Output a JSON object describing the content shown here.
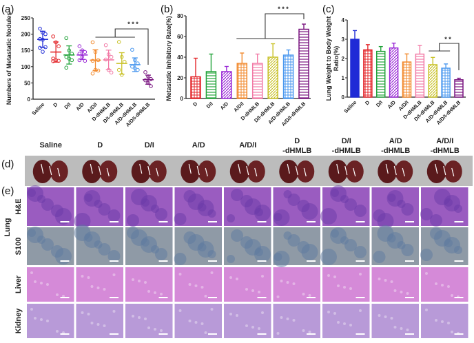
{
  "panel_labels": [
    "(a)",
    "(b)",
    "(c)",
    "(d)",
    "(e)"
  ],
  "colors": [
    "#1f2bd6",
    "#e3262a",
    "#22a33a",
    "#9a2ad6",
    "#f28a2e",
    "#f27aa6",
    "#c9c22a",
    "#4b98ef",
    "#7a1580"
  ],
  "chart_data": [
    {
      "type": "scatter",
      "panel": "(a)",
      "ylabel": "Numbers of Metastatic Nodules",
      "ylim": [
        0,
        250
      ],
      "yticks": [
        0,
        50,
        100,
        150,
        200,
        250
      ],
      "categories": [
        "Saline",
        "D",
        "D/I",
        "A/D",
        "A/D/I",
        "D-dHMLB",
        "D/I-dHMLB",
        "A/D-dHMLB",
        "A/D/I-dHMLB"
      ],
      "means": [
        184,
        145,
        136,
        136,
        120,
        121,
        110,
        106,
        60
      ],
      "sd": [
        25,
        31,
        28,
        14,
        32,
        30,
        33,
        21,
        14
      ],
      "points": [
        [
          217,
          205,
          200,
          185,
          183,
          160,
          158,
          146
        ],
        [
          193,
          175,
          163,
          125,
          120,
          118,
          117
        ],
        [
          188,
          150,
          140,
          130,
          125,
          120,
          97
        ],
        [
          163,
          150,
          145,
          140,
          130,
          118,
          120
        ],
        [
          175,
          145,
          120,
          118,
          90,
          88,
          79
        ],
        [
          166,
          138,
          130,
          122,
          90,
          82
        ],
        [
          176,
          130,
          115,
          90,
          75
        ],
        [
          152,
          120,
          110,
          100,
          95,
          90
        ],
        [
          83,
          70,
          62,
          58,
          50,
          40
        ]
      ],
      "significance": "* * *"
    },
    {
      "type": "bar",
      "panel": "(b)",
      "ylabel": "Metastatic Inhibitory Rate(%)",
      "ylim": [
        0,
        80
      ],
      "yticks": [
        0,
        20,
        40,
        60,
        80
      ],
      "categories": [
        "D",
        "D/I",
        "A/D",
        "A/D/I",
        "D-dHMLB",
        "D/I-dHMLB",
        "A/D-dHMLB",
        "A/D/I-dHMLB"
      ],
      "values": [
        21,
        26,
        26,
        34,
        34,
        40,
        42,
        67
      ],
      "sd": [
        18,
        17,
        5,
        10,
        9,
        13,
        5,
        5
      ],
      "significance": "* * *"
    },
    {
      "type": "bar",
      "panel": "(c)",
      "ylabel": "Lung Weight to Body Weight Ratio(%)",
      "ylabel_lines": [
        "Lung Weight to Body Weight",
        "Ratio(%)"
      ],
      "ylim": [
        0,
        4
      ],
      "yticks": [
        0,
        1,
        2,
        3,
        4
      ],
      "categories": [
        "Saline",
        "D",
        "D/I",
        "A/D",
        "A/D/I",
        "D-dHMLB",
        "D/I-dHMLB",
        "A/D-dHMLB",
        "A/D/I-dHMLB"
      ],
      "values": [
        3.0,
        2.45,
        2.37,
        2.55,
        1.82,
        2.23,
        1.68,
        1.5,
        0.9
      ],
      "sd": [
        0.45,
        0.27,
        0.25,
        0.25,
        0.42,
        0.45,
        0.38,
        0.22,
        0.08
      ],
      "significance": "* *"
    }
  ],
  "groups": [
    [
      "Saline"
    ],
    [
      "D"
    ],
    [
      "D/I"
    ],
    [
      "A/D"
    ],
    [
      "A/D/I"
    ],
    [
      "D",
      "-dHMLB"
    ],
    [
      "D/I",
      "-dHMLB"
    ],
    [
      "A/D",
      "-dHMLB"
    ],
    [
      "A/D/I",
      "-dHMLB"
    ]
  ],
  "organ_label": "Lung",
  "rows": [
    {
      "label": "H&E",
      "tone": "#9a5cc0"
    },
    {
      "label": "S100",
      "tone": "#8f9aa6"
    },
    {
      "label": "Liver",
      "tone": "#d58ad8"
    },
    {
      "label": "Kidney",
      "tone": "#b89ad8"
    }
  ]
}
